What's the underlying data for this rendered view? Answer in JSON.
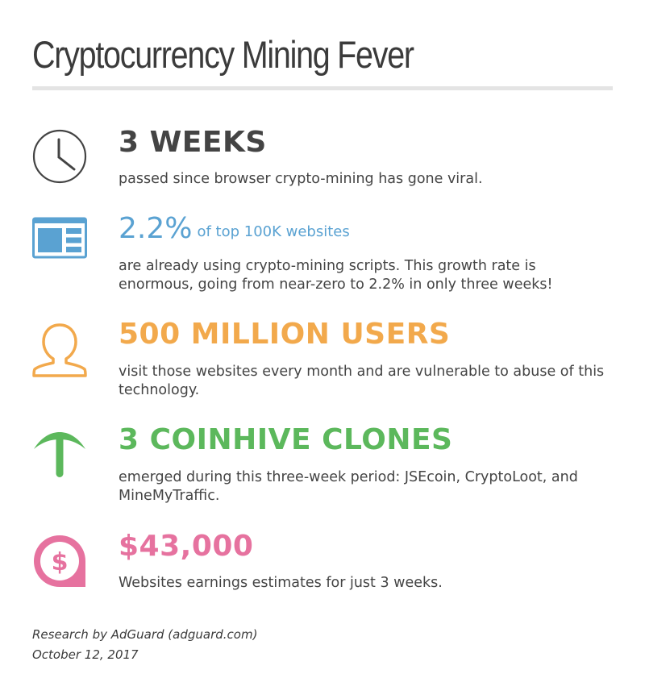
{
  "title": "Cryptocurrency Mining Fever",
  "colors": {
    "title": "#3b3b3b",
    "rule": "#e4e4e4",
    "text": "#444444",
    "weeks": "#444444",
    "websites": "#5aa2d2",
    "users": "#f2a94c",
    "clones": "#5cb85c",
    "money": "#e6729f"
  },
  "stats": [
    {
      "icon": "clock-icon",
      "headline": "3 WEEKS",
      "description": "passed since browser crypto-mining has gone viral."
    },
    {
      "icon": "browser-window-icon",
      "headline": "2.2%",
      "headline_suffix": "of top 100K websites",
      "description": "are already using crypto-mining scripts.  This growth rate is enormous, going from near-zero to 2.2% in only three weeks!"
    },
    {
      "icon": "user-icon",
      "headline": "500 MILLION USERS",
      "description": "visit those websites every month and are vulnerable to abuse of this technology."
    },
    {
      "icon": "pickaxe-icon",
      "headline": "3 COINHIVE CLONES",
      "description": "emerged during this three-week period: JSEcoin, CryptoLoot, and MineMyTraffic."
    },
    {
      "icon": "dollar-bubble-icon",
      "headline": "$43,000",
      "description": "Websites earnings estimates for just 3 weeks."
    }
  ],
  "footer": {
    "source": "Research by AdGuard (adguard.com)",
    "date": "October 12, 2017"
  }
}
